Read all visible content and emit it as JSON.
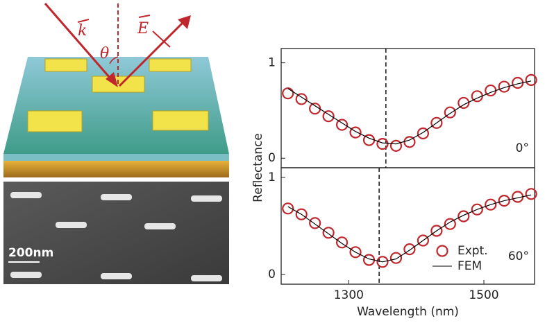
{
  "illustration": {
    "wavevector": "k",
    "field": "E",
    "angle": "θ",
    "scale_bar": "200nm"
  },
  "chart_data": [
    {
      "type": "line",
      "ylabel": "Reflectance",
      "annotation": "0°",
      "vline": 1355,
      "x": [
        1210,
        1230,
        1250,
        1270,
        1290,
        1310,
        1330,
        1350,
        1370,
        1390,
        1410,
        1430,
        1450,
        1470,
        1490,
        1510,
        1530,
        1550,
        1570
      ],
      "series": [
        {
          "mode": "markers",
          "color": "#c0272d",
          "values": [
            0.68,
            0.62,
            0.52,
            0.44,
            0.35,
            0.27,
            0.19,
            0.15,
            0.13,
            0.17,
            0.26,
            0.37,
            0.48,
            0.58,
            0.65,
            0.71,
            0.75,
            0.79,
            0.82
          ]
        },
        {
          "mode": "line",
          "color": "#000000",
          "values": [
            0.73,
            0.64,
            0.55,
            0.46,
            0.37,
            0.28,
            0.21,
            0.16,
            0.15,
            0.19,
            0.27,
            0.37,
            0.47,
            0.56,
            0.63,
            0.69,
            0.74,
            0.78,
            0.81
          ]
        }
      ],
      "xlim": [
        1200,
        1575
      ],
      "ylim": [
        -0.1,
        1.15
      ],
      "yticks": [
        0,
        1
      ]
    },
    {
      "type": "line",
      "xlabel": "Wavelength (nm)",
      "annotation": "60°",
      "vline": 1345,
      "x": [
        1210,
        1230,
        1250,
        1270,
        1290,
        1310,
        1330,
        1350,
        1370,
        1390,
        1410,
        1430,
        1450,
        1470,
        1490,
        1510,
        1530,
        1550,
        1570
      ],
      "series": [
        {
          "name": "Expt.",
          "mode": "markers",
          "color": "#c0272d",
          "values": [
            0.68,
            0.62,
            0.53,
            0.43,
            0.33,
            0.23,
            0.15,
            0.13,
            0.17,
            0.26,
            0.35,
            0.45,
            0.52,
            0.6,
            0.67,
            0.72,
            0.76,
            0.8,
            0.83
          ]
        },
        {
          "name": "FEM",
          "mode": "line",
          "color": "#000000",
          "values": [
            0.7,
            0.62,
            0.52,
            0.42,
            0.32,
            0.23,
            0.16,
            0.13,
            0.16,
            0.25,
            0.35,
            0.45,
            0.54,
            0.61,
            0.67,
            0.72,
            0.76,
            0.79,
            0.82
          ]
        }
      ],
      "xlim": [
        1200,
        1575
      ],
      "ylim": [
        -0.1,
        1.1
      ],
      "xticks": [
        1300,
        1500
      ],
      "yticks": [
        0,
        1
      ],
      "legend": "lower right"
    }
  ]
}
